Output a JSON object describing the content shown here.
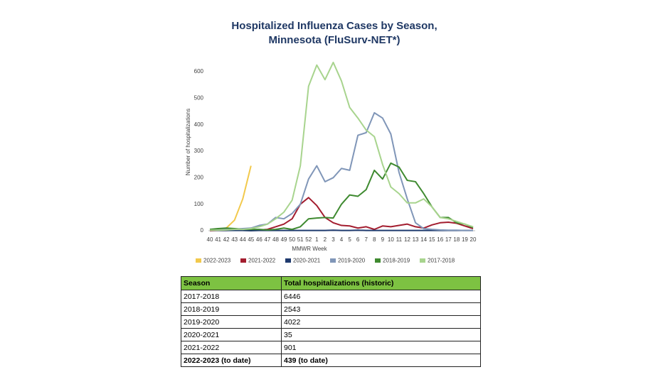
{
  "chart_data": {
    "type": "line",
    "title": [
      "Hospitalized Influenza Cases by Season,",
      "Minnesota (FluSurv-NET*)"
    ],
    "xlabel": "MMWR Week",
    "ylabel": "Number of hospitalizations",
    "categories": [
      "40",
      "41",
      "42",
      "43",
      "44",
      "45",
      "46",
      "47",
      "48",
      "49",
      "50",
      "51",
      "52",
      "1",
      "2",
      "3",
      "4",
      "5",
      "6",
      "7",
      "8",
      "9",
      "10",
      "11",
      "12",
      "13",
      "14",
      "15",
      "16",
      "17",
      "18",
      "19",
      "20"
    ],
    "ylim": [
      0,
      600
    ],
    "yticks": [
      0,
      100,
      200,
      300,
      400,
      500,
      600
    ],
    "series": [
      {
        "name": "2022-2023",
        "color": "#f2c94c",
        "values": [
          2,
          5,
          10,
          40,
          120,
          245,
          null,
          null,
          null,
          null,
          null,
          null,
          null,
          null,
          null,
          null,
          null,
          null,
          null,
          null,
          null,
          null,
          null,
          null,
          null,
          null,
          null,
          null,
          null,
          null,
          null,
          null,
          null
        ]
      },
      {
        "name": "2021-2022",
        "color": "#a31d2f",
        "values": [
          0,
          1,
          1,
          2,
          2,
          2,
          3,
          5,
          15,
          25,
          45,
          100,
          125,
          95,
          50,
          30,
          20,
          18,
          10,
          15,
          5,
          18,
          15,
          20,
          25,
          15,
          10,
          22,
          30,
          32,
          28,
          18,
          8
        ]
      },
      {
        "name": "2020-2021",
        "color": "#1f3a6e",
        "values": [
          2,
          1,
          1,
          1,
          1,
          0,
          1,
          1,
          1,
          1,
          1,
          1,
          1,
          1,
          1,
          2,
          1,
          1,
          2,
          1,
          1,
          1,
          1,
          1,
          1,
          1,
          1,
          1,
          1,
          1,
          1,
          1,
          1
        ]
      },
      {
        "name": "2019-2020",
        "color": "#8096b8",
        "values": [
          2,
          3,
          5,
          5,
          8,
          10,
          20,
          25,
          50,
          45,
          65,
          100,
          195,
          245,
          185,
          200,
          235,
          228,
          360,
          370,
          445,
          425,
          365,
          220,
          120,
          30,
          8,
          5,
          3,
          2,
          2,
          1,
          1
        ]
      },
      {
        "name": "2018-2019",
        "color": "#3f8a30",
        "values": [
          5,
          8,
          10,
          8,
          5,
          5,
          5,
          3,
          5,
          10,
          5,
          15,
          45,
          48,
          50,
          48,
          100,
          135,
          130,
          155,
          228,
          195,
          255,
          240,
          190,
          185,
          140,
          90,
          50,
          50,
          30,
          25,
          12
        ]
      },
      {
        "name": "2017-2018",
        "color": "#a8d48e",
        "values": [
          2,
          2,
          3,
          5,
          5,
          8,
          15,
          25,
          45,
          70,
          115,
          245,
          545,
          625,
          570,
          635,
          565,
          465,
          425,
          380,
          355,
          250,
          165,
          140,
          105,
          105,
          120,
          90,
          50,
          45,
          35,
          25,
          15
        ]
      }
    ]
  },
  "table": {
    "header": [
      "Season",
      "Total hospitalizations (historic)"
    ],
    "rows": [
      [
        "2017-2018",
        "6446"
      ],
      [
        "2018-2019",
        "2543"
      ],
      [
        "2019-2020",
        "4022"
      ],
      [
        "2020-2021",
        "35"
      ],
      [
        "2021-2022",
        "901"
      ],
      [
        "2022-2023 (to date)",
        "439 (to date)"
      ]
    ]
  }
}
